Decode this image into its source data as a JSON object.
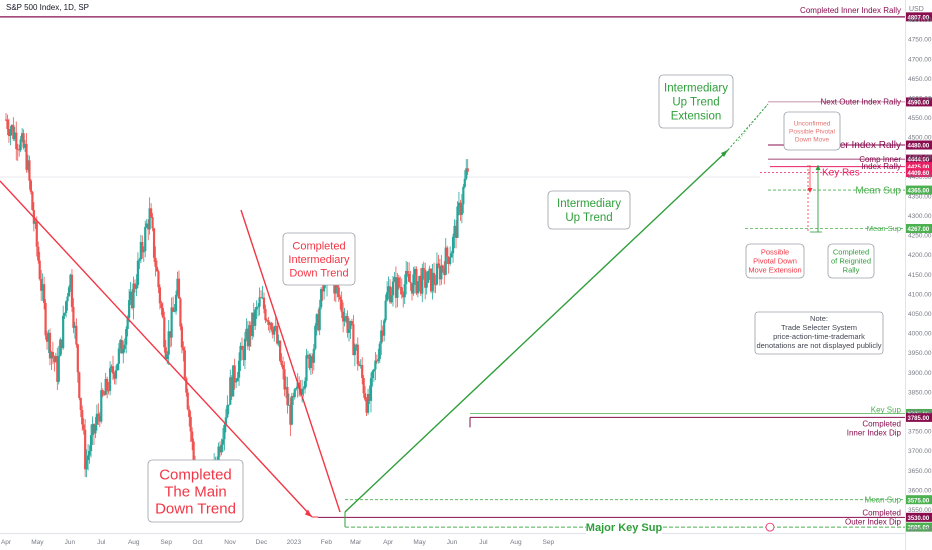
{
  "header": {
    "symbol_line": "S&P 500 Index, 1D, SP",
    "currency": "USD"
  },
  "chart_data": {
    "type": "candlestick",
    "x_ticks": [
      "Apr",
      "May",
      "Jun",
      "Jul",
      "Aug",
      "Sep",
      "Oct",
      "Nov",
      "Dec",
      "2023",
      "Feb",
      "Mar",
      "Apr",
      "May",
      "Jun",
      "Jul",
      "Aug",
      "Sep"
    ],
    "y_ticks": [
      3500,
      3550,
      3600,
      3650,
      3700,
      3750,
      3800,
      3850,
      3900,
      3950,
      4000,
      4050,
      4100,
      4150,
      4200,
      4250,
      4300,
      4350,
      4400,
      4450,
      4500,
      4550,
      4600,
      4650,
      4700,
      4750,
      4800
    ],
    "ylim": [
      3490,
      4850
    ],
    "price_path": [
      [
        "2022-04-01",
        4545
      ],
      [
        "2022-04-20",
        4460
      ],
      [
        "2022-05-10",
        4000
      ],
      [
        "2022-05-20",
        3900
      ],
      [
        "2022-06-01",
        4160
      ],
      [
        "2022-06-16",
        3666
      ],
      [
        "2022-07-01",
        3820
      ],
      [
        "2022-07-20",
        3960
      ],
      [
        "2022-08-16",
        4305
      ],
      [
        "2022-09-01",
        3960
      ],
      [
        "2022-09-12",
        4110
      ],
      [
        "2022-09-30",
        3590
      ],
      [
        "2022-10-12",
        3577
      ],
      [
        "2022-11-01",
        3860
      ],
      [
        "2022-11-30",
        4080
      ],
      [
        "2022-12-13",
        4019
      ],
      [
        "2022-12-28",
        3790
      ],
      [
        "2023-01-20",
        3970
      ],
      [
        "2023-02-02",
        4180
      ],
      [
        "2023-03-01",
        3960
      ],
      [
        "2023-03-13",
        3810
      ],
      [
        "2023-04-01",
        4110
      ],
      [
        "2023-04-20",
        4130
      ],
      [
        "2023-05-15",
        4135
      ],
      [
        "2023-06-01",
        4220
      ],
      [
        "2023-06-16",
        4420
      ]
    ],
    "levels": [
      {
        "label": "Completed Inner Index Rally",
        "value": 4807,
        "tag": "4807.00",
        "color": "#880e4f"
      },
      {
        "label": "Next Outer Index Rally",
        "value": 4590,
        "tag": "4590.00",
        "color": "#880e4f"
      },
      {
        "label": "Outer Index Rally",
        "value": 4480,
        "tag": "4480.00",
        "color": "#880e4f"
      },
      {
        "label": "Comp Inner Index Rally",
        "value": 4425,
        "tag": "4425.00",
        "color": "#e91e63"
      },
      {
        "label": "Key Res",
        "value": 4409.6,
        "tag": "4409.60",
        "color": "#e91e63"
      },
      {
        "label": "Mean Sup",
        "value": 4365,
        "tag": "4365.00",
        "color": "#4caf50"
      },
      {
        "label": "Mean Sup",
        "value": 4267,
        "tag": "4267.00",
        "color": "#4caf50"
      },
      {
        "label": "Key Sup",
        "value": 3795,
        "tag": "3795.00",
        "color": "#4caf50"
      },
      {
        "label": "Completed Inner Index Dip",
        "value": 3785,
        "tag": "3785.00",
        "color": "#880e4f"
      },
      {
        "label": "Mean Sup",
        "value": 3575,
        "tag": "3575.00",
        "color": "#4caf50"
      },
      {
        "label": "Completed Outer Index Dip",
        "value": 3530,
        "tag": "3530.00",
        "color": "#880e4f"
      },
      {
        "label": "Major Key Sup",
        "value": 3505,
        "tag": "3505.00",
        "color": "#4caf50"
      }
    ],
    "annotations": {
      "completed_main_down_trend": "Completed The Main Down Trend",
      "completed_intermediary_down_trend": "Completed Intermediary Down Trend",
      "intermediary_up_trend": "Intermediary Up Trend",
      "intermediary_up_trend_extension": "Intermediary Up Trend Extension",
      "unconfirmed_pivotal": "Unconfirmed Possible Pivotal Down Move",
      "possible_pivotal_down": "Possible Pivotal Down Move Extension",
      "completed_reignited_rally": "Completed of Reignited Rally",
      "note_title": "Note:",
      "note_lines": [
        "Trade Selecter System",
        "price-action-time-trademark",
        "denotations are not displayed publicly"
      ]
    }
  },
  "colors": {
    "up": "#26a69a",
    "down": "#ef5350",
    "bear_trend": "#f23645",
    "bull_trend": "#2e9e3a",
    "maroon": "#880e4f",
    "pink": "#e91e63",
    "green": "#4caf50"
  }
}
